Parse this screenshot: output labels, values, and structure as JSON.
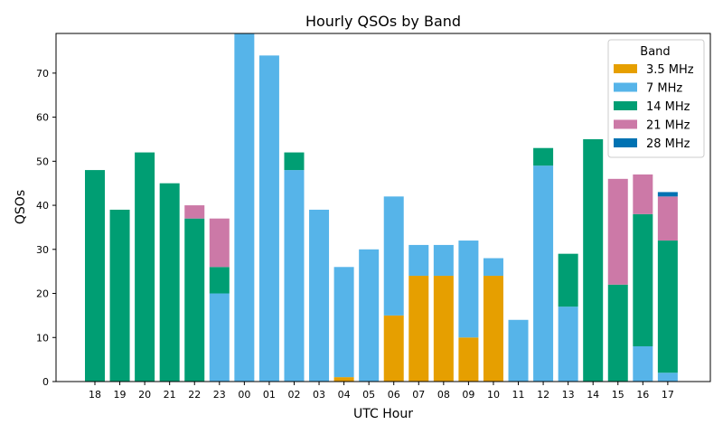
{
  "chart_data": {
    "type": "bar",
    "stacked": true,
    "title": "Hourly QSOs by Band",
    "xlabel": "UTC Hour",
    "ylabel": "QSOs",
    "ylim": [
      0,
      79
    ],
    "yticks": [
      0,
      10,
      20,
      30,
      40,
      50,
      60,
      70
    ],
    "categories": [
      "18",
      "19",
      "20",
      "21",
      "22",
      "23",
      "00",
      "01",
      "02",
      "03",
      "04",
      "05",
      "06",
      "07",
      "08",
      "09",
      "10",
      "11",
      "12",
      "13",
      "14",
      "15",
      "16",
      "17"
    ],
    "legend_title": "Band",
    "legend_position": "top-right",
    "grid": false,
    "series": [
      {
        "name": "3.5 MHz",
        "color": "#E69F00",
        "values": [
          0,
          0,
          0,
          0,
          0,
          0,
          0,
          0,
          0,
          0,
          1,
          0,
          15,
          24,
          24,
          10,
          24,
          0,
          0,
          0,
          0,
          0,
          0,
          0
        ]
      },
      {
        "name": "7 MHz",
        "color": "#56B4E9",
        "values": [
          0,
          0,
          0,
          0,
          0,
          20,
          79,
          74,
          48,
          39,
          25,
          30,
          27,
          7,
          7,
          22,
          4,
          14,
          49,
          17,
          0,
          0,
          8,
          2
        ]
      },
      {
        "name": "14 MHz",
        "color": "#009E73",
        "values": [
          48,
          39,
          52,
          45,
          37,
          6,
          0,
          0,
          4,
          0,
          0,
          0,
          0,
          0,
          0,
          0,
          0,
          0,
          4,
          12,
          55,
          22,
          30,
          30
        ]
      },
      {
        "name": "21 MHz",
        "color": "#CC79A7",
        "values": [
          0,
          0,
          0,
          0,
          3,
          11,
          0,
          0,
          0,
          0,
          0,
          0,
          0,
          0,
          0,
          0,
          0,
          0,
          0,
          0,
          0,
          24,
          9,
          10
        ]
      },
      {
        "name": "28 MHz",
        "color": "#0072B2",
        "values": [
          0,
          0,
          0,
          0,
          0,
          0,
          0,
          0,
          0,
          0,
          0,
          0,
          0,
          0,
          0,
          0,
          0,
          0,
          0,
          0,
          0,
          0,
          0,
          1
        ]
      }
    ]
  }
}
